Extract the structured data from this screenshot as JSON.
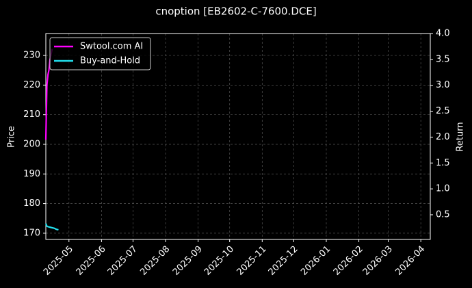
{
  "chart_data": {
    "type": "line",
    "title": "cnoption [EB2602-C-7600.DCE]",
    "y_label": "Price",
    "y2_label": "Return",
    "xlim": [
      "2025-04-09",
      "2026-04-10"
    ],
    "xticks": [
      {
        "value": "2025-05-01",
        "label": "2025-05"
      },
      {
        "value": "2025-06-01",
        "label": "2025-06"
      },
      {
        "value": "2025-07-01",
        "label": "2025-07"
      },
      {
        "value": "2025-08-01",
        "label": "2025-08"
      },
      {
        "value": "2025-09-01",
        "label": "2025-09"
      },
      {
        "value": "2025-10-01",
        "label": "2025-10"
      },
      {
        "value": "2025-11-01",
        "label": "2025-11"
      },
      {
        "value": "2025-12-01",
        "label": "2025-12"
      },
      {
        "value": "2026-01-01",
        "label": "2026-01"
      },
      {
        "value": "2026-02-01",
        "label": "2026-02"
      },
      {
        "value": "2026-03-01",
        "label": "2026-03"
      },
      {
        "value": "2026-04-01",
        "label": "2026-04"
      }
    ],
    "ylim": [
      167.9,
      237.4
    ],
    "yticks": [
      170,
      180,
      190,
      200,
      210,
      220,
      230
    ],
    "y2lim": [
      0.024,
      4.0
    ],
    "y2ticks": [
      0.5,
      {
        "value": 1,
        "label": "1.0"
      },
      1.5,
      {
        "value": 2,
        "label": "2.0"
      },
      2.5,
      {
        "value": 3,
        "label": "3.0"
      },
      3.5,
      {
        "value": 4,
        "label": "4.0"
      }
    ],
    "grid": true,
    "legend": "upper left",
    "series": [
      {
        "name": "Swtool.com AI",
        "color": "#ff00ff",
        "axis": "y2",
        "x": [
          "2025-04-09",
          "2025-04-10",
          "2025-04-11",
          "2025-04-12",
          "2025-04-13",
          "2025-04-14",
          "2025-04-15"
        ],
        "values": [
          1.95,
          3.0,
          3.2,
          3.3,
          3.5,
          3.6,
          3.7
        ]
      },
      {
        "name": "Buy-and-Hold",
        "color": "#22e0ee",
        "axis": "y2",
        "x": [
          "2025-04-09",
          "2025-04-10",
          "2025-04-11",
          "2025-04-13",
          "2025-04-15",
          "2025-04-17",
          "2025-04-19",
          "2025-04-21"
        ],
        "values": [
          0.33,
          0.28,
          0.27,
          0.26,
          0.25,
          0.24,
          0.22,
          0.21
        ]
      }
    ]
  }
}
